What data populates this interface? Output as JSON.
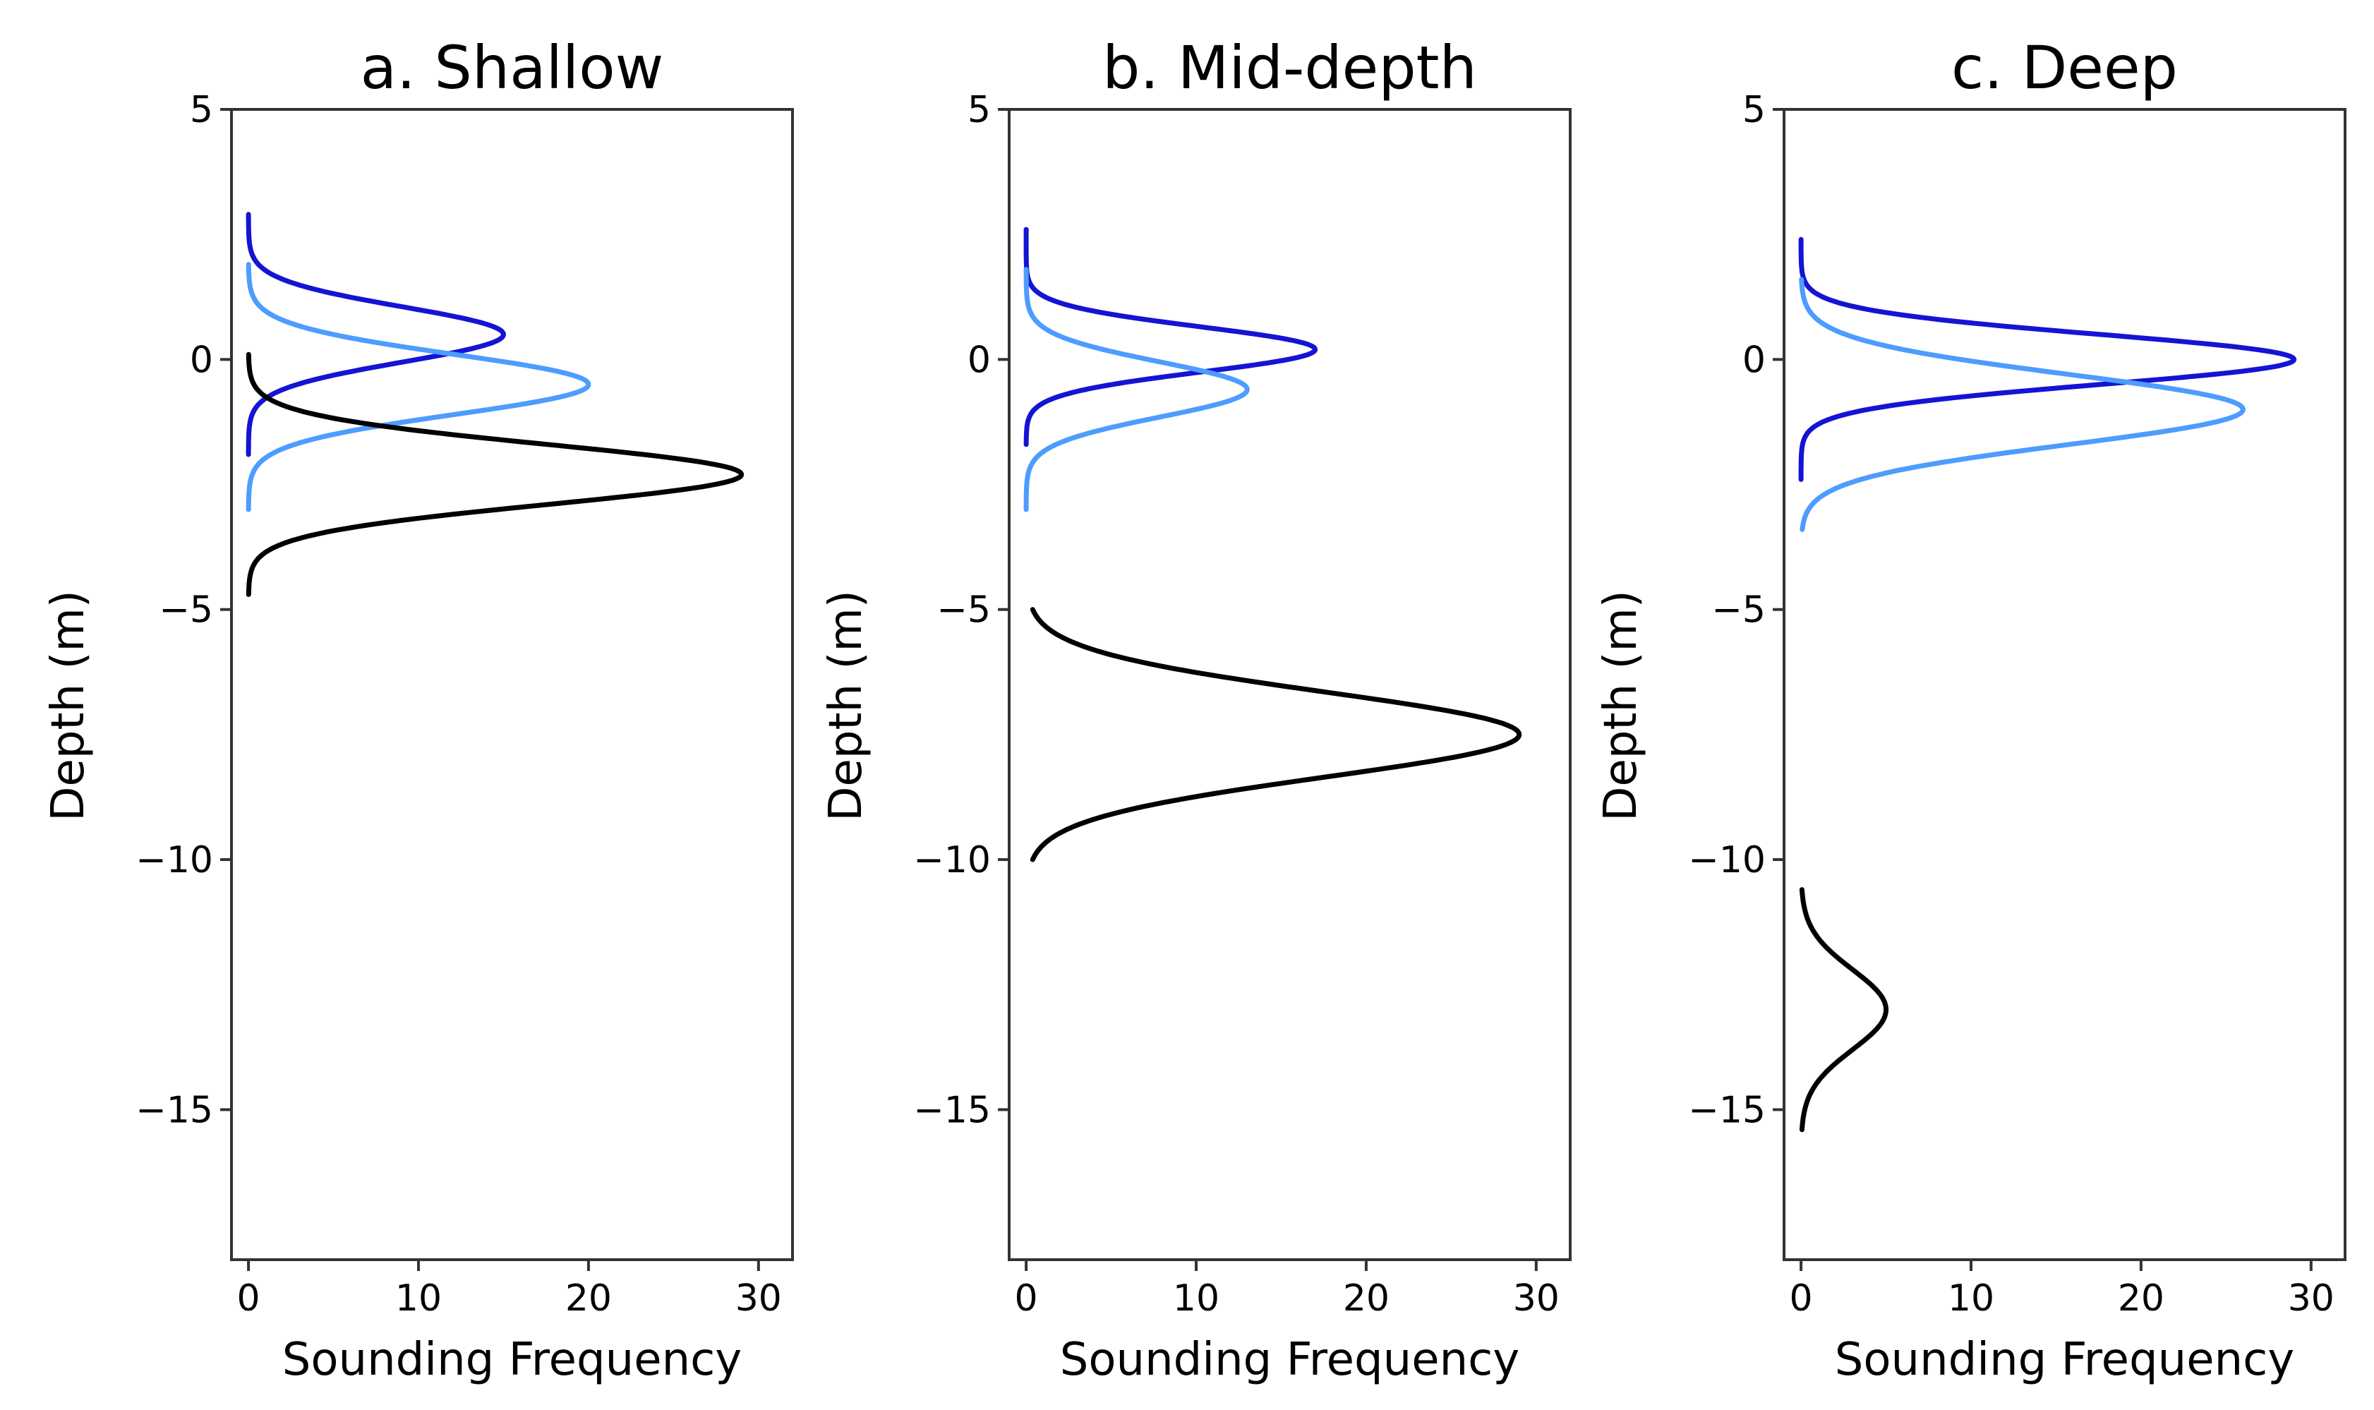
{
  "chart_data": [
    {
      "type": "line",
      "orientation": "horizontal-distribution",
      "title": "a. Shallow",
      "xlabel": "Sounding Frequency",
      "ylabel": "Depth (m)",
      "xlim": [
        -1,
        32
      ],
      "ylim": [
        -18,
        5
      ],
      "xticks": [
        0,
        10,
        20,
        30
      ],
      "xtick_labels": [
        "0",
        "10",
        "20",
        "30"
      ],
      "yticks": [
        5,
        0,
        -5,
        -10,
        -15
      ],
      "ytick_labels": [
        "5",
        "0",
        "−5",
        "−10",
        "−15"
      ],
      "grid": false,
      "series": [
        {
          "name": "dark blue",
          "color": "#1414d4",
          "peak_depth": 0.5,
          "peak_frequency": 15,
          "sigma": 0.55,
          "depth_range": [
            -1.9,
            2.9
          ]
        },
        {
          "name": "light blue",
          "color": "#4d9cff",
          "peak_depth": -0.5,
          "peak_frequency": 20,
          "sigma": 0.6,
          "depth_range": [
            -3.0,
            1.9
          ]
        },
        {
          "name": "black",
          "color": "#000000",
          "peak_depth": -2.3,
          "peak_frequency": 29,
          "sigma": 0.6,
          "depth_range": [
            -4.7,
            0.1
          ]
        }
      ]
    },
    {
      "type": "line",
      "orientation": "horizontal-distribution",
      "title": "b. Mid-depth",
      "xlabel": "Sounding Frequency",
      "ylabel": "Depth (m)",
      "xlim": [
        -1,
        32
      ],
      "ylim": [
        -18,
        5
      ],
      "xticks": [
        0,
        10,
        20,
        30
      ],
      "xtick_labels": [
        "0",
        "10",
        "20",
        "30"
      ],
      "yticks": [
        5,
        0,
        -5,
        -10,
        -15
      ],
      "ytick_labels": [
        "5",
        "0",
        "−5",
        "−10",
        "−15"
      ],
      "grid": false,
      "series": [
        {
          "name": "dark blue",
          "color": "#1414d4",
          "peak_depth": 0.2,
          "peak_frequency": 17,
          "sigma": 0.45,
          "depth_range": [
            -1.7,
            2.6
          ]
        },
        {
          "name": "light blue",
          "color": "#4d9cff",
          "peak_depth": -0.6,
          "peak_frequency": 13,
          "sigma": 0.55,
          "depth_range": [
            -3.0,
            1.8
          ]
        },
        {
          "name": "black",
          "color": "#000000",
          "peak_depth": -7.5,
          "peak_frequency": 29,
          "sigma": 0.85,
          "depth_range": [
            -10.0,
            -5.0
          ]
        }
      ]
    },
    {
      "type": "line",
      "orientation": "horizontal-distribution",
      "title": "c. Deep",
      "xlabel": "Sounding Frequency",
      "ylabel": "Depth (m)",
      "xlim": [
        -1,
        32
      ],
      "ylim": [
        -18,
        5
      ],
      "xticks": [
        0,
        10,
        20,
        30
      ],
      "xtick_labels": [
        "0",
        "10",
        "20",
        "30"
      ],
      "yticks": [
        5,
        0,
        -5,
        -10,
        -15
      ],
      "ytick_labels": [
        "5",
        "0",
        "−5",
        "−10",
        "−15"
      ],
      "grid": false,
      "series": [
        {
          "name": "dark blue",
          "color": "#1414d4",
          "peak_depth": 0.0,
          "peak_frequency": 29,
          "sigma": 0.5,
          "depth_range": [
            -2.4,
            2.4
          ]
        },
        {
          "name": "light blue",
          "color": "#4d9cff",
          "peak_depth": -1.0,
          "peak_frequency": 26,
          "sigma": 0.7,
          "depth_range": [
            -3.4,
            1.6
          ]
        },
        {
          "name": "black",
          "color": "#000000",
          "peak_depth": -13.0,
          "peak_frequency": 5,
          "sigma": 0.8,
          "depth_range": [
            -15.4,
            -10.6
          ]
        }
      ]
    }
  ]
}
